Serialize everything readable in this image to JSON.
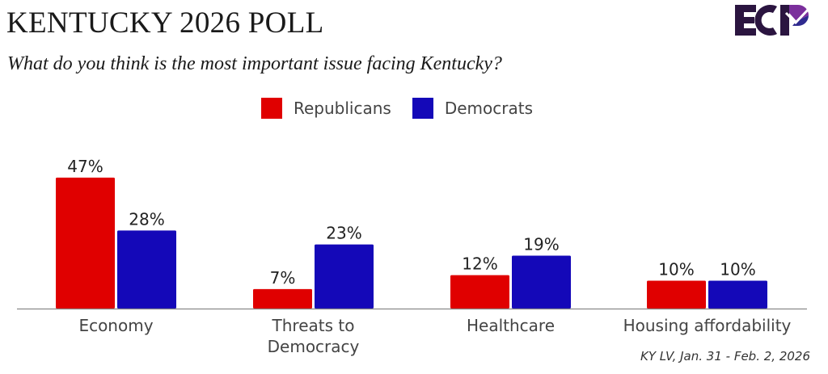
{
  "header": {
    "title": "KENTUCKY 2026 POLL",
    "subtitle": "What do you think is the most important issue facing Kentucky?",
    "logo_text": "ECP",
    "logo_icon": "ecp-checkmark-logo-icon"
  },
  "colors": {
    "republicans": "#e00000",
    "democrats": "#1408b8",
    "axis": "#888888",
    "text": "#333333",
    "logo_dark": "#2b1540",
    "logo_purple": "#7b2f9c",
    "logo_blue": "#2f2a8f"
  },
  "source": "KY LV, Jan. 31 - Feb. 2, 2026",
  "chart_data": {
    "type": "bar",
    "title": "KENTUCKY 2026 POLL",
    "subtitle": "What do you think is the most important issue facing Kentucky?",
    "xlabel": "",
    "ylabel": "",
    "ylim": [
      0,
      50
    ],
    "grid": false,
    "legend_position": "top-center",
    "categories": [
      "Economy",
      "Threats to Democracy",
      "Healthcare",
      "Housing affordability"
    ],
    "category_label_lines": [
      [
        "Economy"
      ],
      [
        "Threats to",
        "Democracy"
      ],
      [
        "Healthcare"
      ],
      [
        "Housing affordability"
      ]
    ],
    "series": [
      {
        "name": "Republicans",
        "color": "#e00000",
        "values": [
          47,
          7,
          12,
          10
        ],
        "labels": [
          "47%",
          "7%",
          "12%",
          "10%"
        ]
      },
      {
        "name": "Democrats",
        "color": "#1408b8",
        "values": [
          28,
          23,
          19,
          10
        ],
        "labels": [
          "28%",
          "23%",
          "19%",
          "10%"
        ]
      }
    ],
    "value_suffix": "%",
    "annotation": "KY LV, Jan. 31 - Feb. 2, 2026"
  }
}
